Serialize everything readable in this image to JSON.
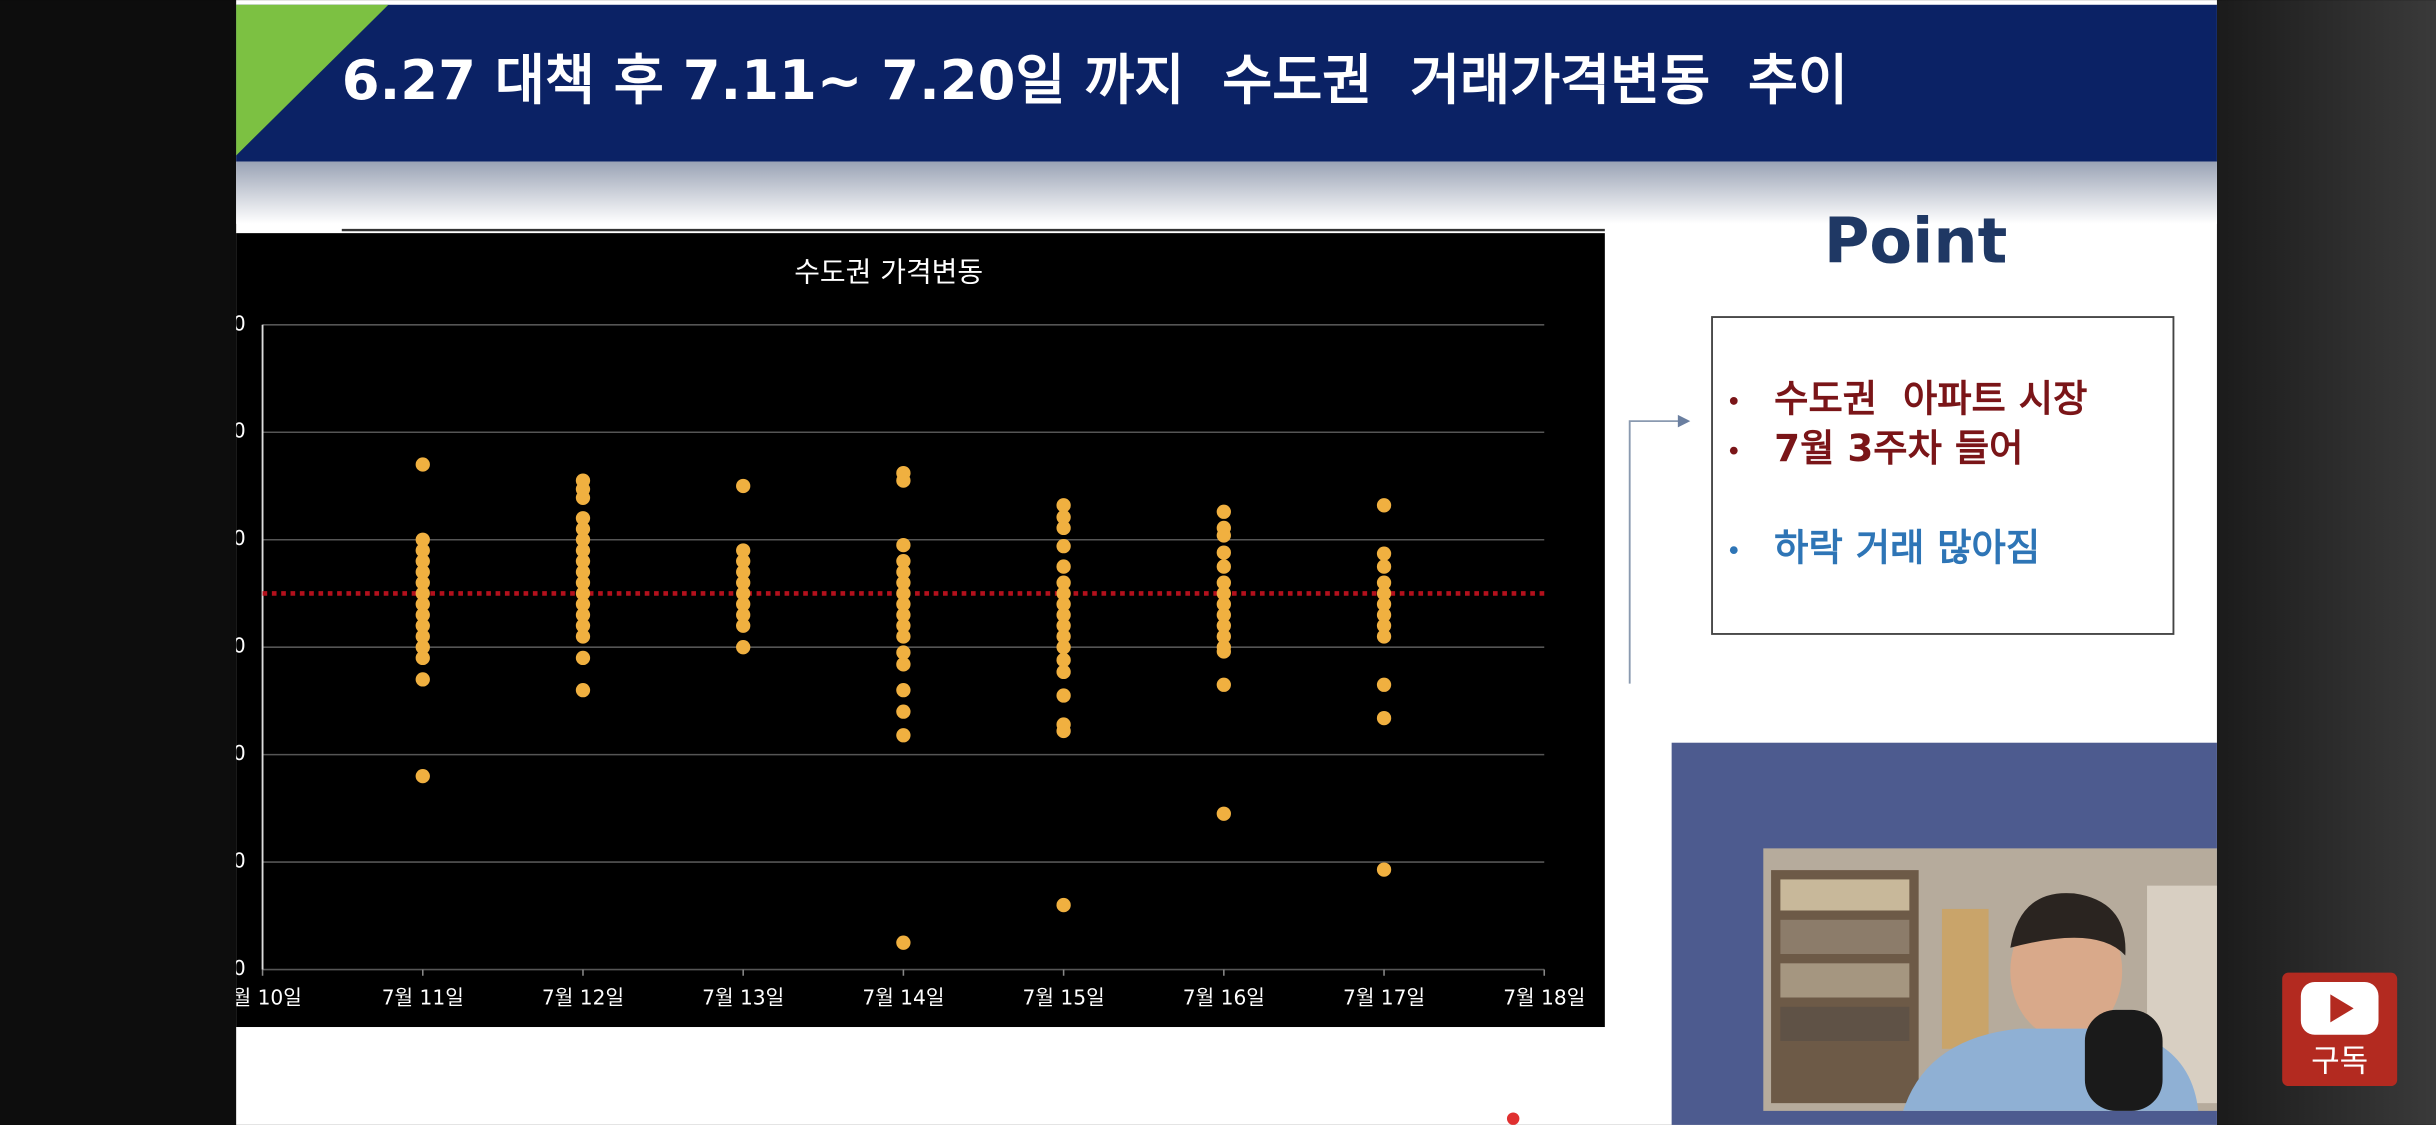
{
  "slide": {
    "title": "6.27 대책 후 7.11~ 7.20일 까지  수도권  거래가격변동  추이"
  },
  "chart_data": {
    "type": "scatter",
    "title": "수도권 가격변동",
    "color": "#f0b040",
    "x": [
      11,
      11,
      11,
      11,
      11,
      11,
      11,
      11,
      11,
      11,
      11,
      11,
      11,
      11,
      11,
      12,
      12,
      12,
      12,
      12,
      12,
      12,
      12,
      12,
      12,
      12,
      12,
      12,
      12,
      12,
      12,
      12,
      13,
      13,
      13,
      13,
      13,
      13,
      13,
      13,
      13,
      13,
      14,
      14,
      14,
      14,
      14,
      14,
      14,
      14,
      14,
      14,
      14,
      14,
      14,
      14,
      14,
      14,
      14,
      15,
      15,
      15,
      15,
      15,
      15,
      15,
      15,
      15,
      15,
      15,
      15,
      15,
      15,
      15,
      15,
      15,
      15,
      16,
      16,
      16,
      16,
      16,
      16,
      16,
      16,
      16,
      16,
      16,
      16,
      16,
      16,
      16,
      17,
      17,
      17,
      17,
      17,
      17,
      17,
      17,
      17,
      17,
      17,
      17
    ],
    "values": [
      17,
      10,
      9,
      8,
      7,
      6,
      5,
      4,
      3,
      2,
      1,
      0,
      -1,
      -3,
      -12,
      15.5,
      14.7,
      13.9,
      12,
      11,
      10,
      9,
      8,
      7,
      6,
      5,
      4,
      3,
      2,
      1,
      -1,
      -4,
      15,
      9,
      8,
      7,
      6,
      5,
      4,
      3,
      2,
      0,
      16.2,
      15.5,
      9.5,
      8,
      7,
      6,
      5,
      4,
      3,
      2,
      1,
      -0.5,
      -1.6,
      -4,
      -6,
      -8.2,
      -27.5,
      13.2,
      12.1,
      11.1,
      9.4,
      7.5,
      6,
      5,
      4,
      3,
      2,
      1,
      0,
      -1.2,
      -2.3,
      -4.5,
      -7.2,
      -7.8,
      -24,
      12.6,
      11.1,
      10.4,
      8.8,
      7.5,
      6,
      5,
      4,
      3,
      2,
      1,
      0,
      -0.4,
      -3.5,
      -15.5,
      13.2,
      8.7,
      7.5,
      6,
      5,
      4,
      3,
      2,
      1,
      -3.5,
      -6.6,
      -20.7
    ],
    "xlim": [
      10,
      18
    ],
    "xticks": [
      {
        "value": 10,
        "label": "월 10일"
      },
      {
        "value": 11,
        "label": "7월 11일"
      },
      {
        "value": 12,
        "label": "7월 12일"
      },
      {
        "value": 13,
        "label": "7월 13일"
      },
      {
        "value": 14,
        "label": "7월 14일"
      },
      {
        "value": 15,
        "label": "7월 15일"
      },
      {
        "value": 16,
        "label": "7월 16일"
      },
      {
        "value": 17,
        "label": "7월 17일"
      },
      {
        "value": 18,
        "label": "7월 18일"
      }
    ],
    "ylim": [
      -30,
      30
    ],
    "yticks": [
      {
        "value": -30,
        "label": "0"
      },
      {
        "value": -20,
        "label": "0"
      },
      {
        "value": -10,
        "label": "0"
      },
      {
        "value": 0,
        "label": "0"
      },
      {
        "value": 10,
        "label": "0"
      },
      {
        "value": 20,
        "label": "0"
      },
      {
        "value": 30,
        "label": "0"
      }
    ],
    "grid": true,
    "reference_line": {
      "value": 5,
      "color": "#b3101c"
    }
  },
  "point": {
    "heading": "Point",
    "bullets": [
      {
        "text": "수도권  아파트 시장",
        "color": "#7a1518"
      },
      {
        "text": "7월 3주차 들어",
        "color": "#7a1518"
      },
      {
        "text": "하락 거래 많아짐",
        "color": "#2e75b6"
      }
    ]
  },
  "subscribe_button": {
    "label": "구독"
  }
}
